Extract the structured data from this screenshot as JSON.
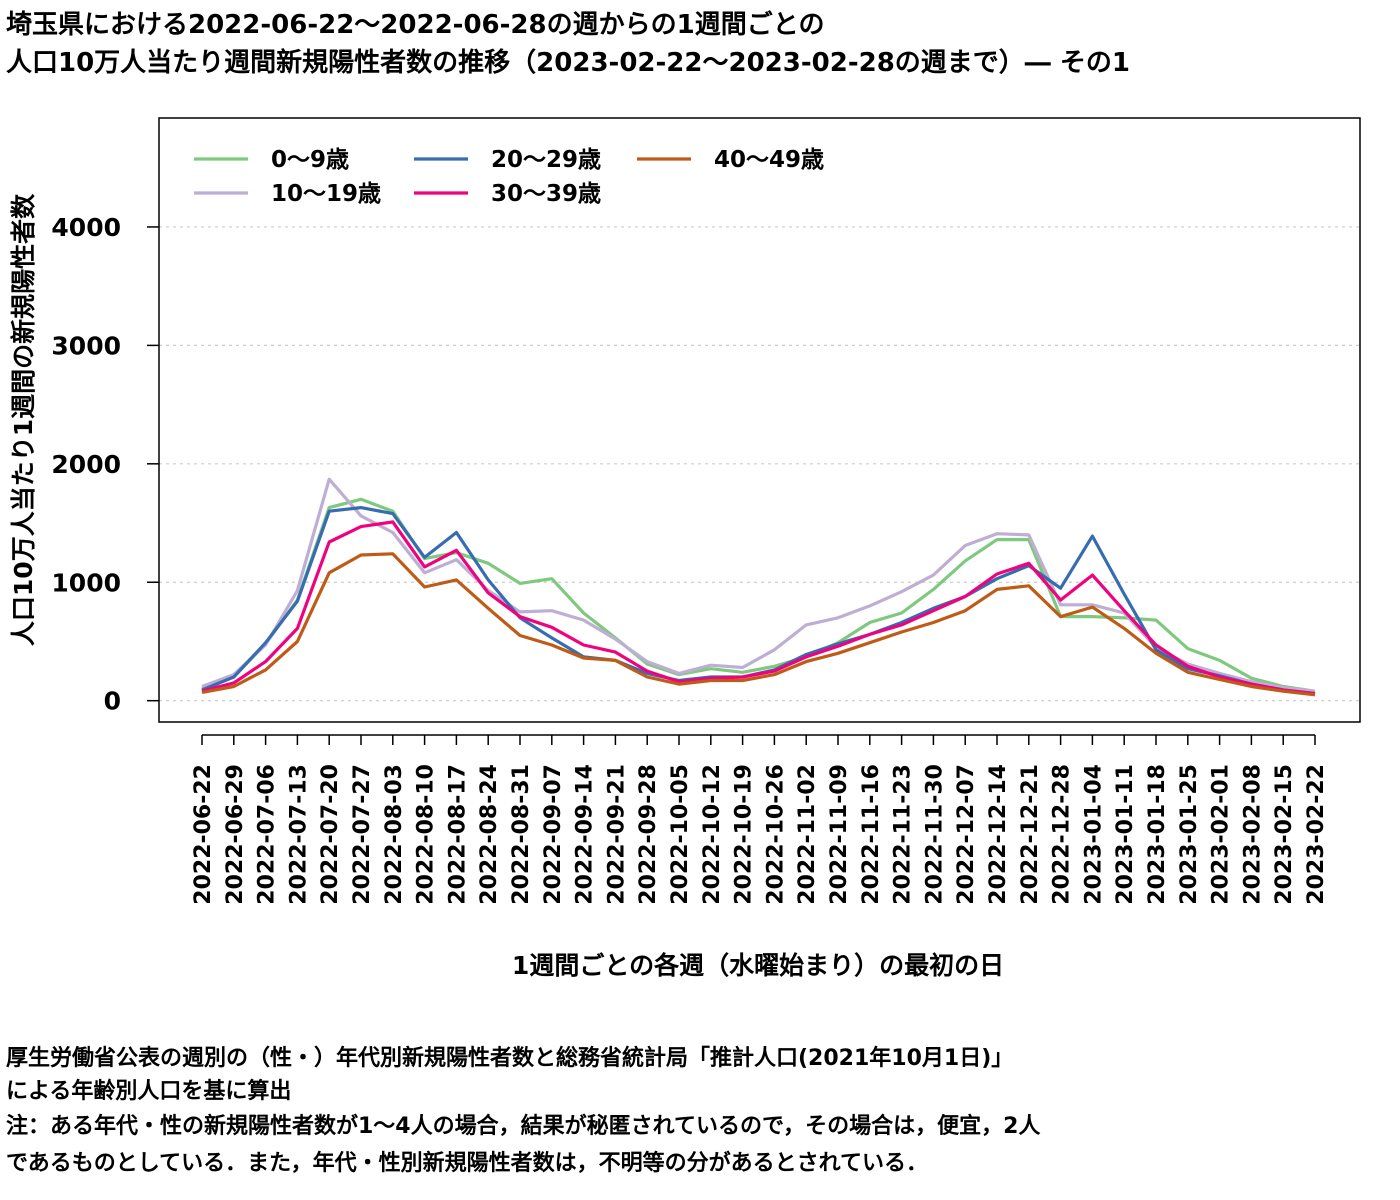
{
  "title_line1": "埼玉県における2022-06-22〜2022-06-28の週からの1週間ごとの",
  "title_line2": "人口10万人当たり週間新規陽性者数の推移（2023-02-22〜2023-02-28の週まで）― その1",
  "notes": [
    "厚生労働省公表の週別の（性・）年代別新規陽性者数と総務省統計局「推計人口(2021年10月1日)」",
    "による年齢別人口を基に算出",
    "注：ある年代・性の新規陽性者数が1〜4人の場合，結果が秘匿されているので，その場合は，便宜，2人",
    "であるものとしている．また，年代・性別新規陽性者数は，不明等の分があるとされている．"
  ],
  "chart_data": {
    "type": "line",
    "xlabel": "1週間ごとの各週（水曜始まり）の最初の日",
    "ylabel": "人口10万人当たり1週間の新規陽性者数",
    "ylim": [
      -180,
      4920
    ],
    "yticks": [
      0,
      1000,
      2000,
      3000,
      4000
    ],
    "grid": true,
    "legend_position": "top-left",
    "categories": [
      "2022-06-22",
      "2022-06-29",
      "2022-07-06",
      "2022-07-13",
      "2022-07-20",
      "2022-07-27",
      "2022-08-03",
      "2022-08-10",
      "2022-08-17",
      "2022-08-24",
      "2022-08-31",
      "2022-09-07",
      "2022-09-14",
      "2022-09-21",
      "2022-09-28",
      "2022-10-05",
      "2022-10-12",
      "2022-10-19",
      "2022-10-26",
      "2022-11-02",
      "2022-11-09",
      "2022-11-16",
      "2022-11-23",
      "2022-11-30",
      "2022-12-07",
      "2022-12-14",
      "2022-12-21",
      "2022-12-28",
      "2023-01-04",
      "2023-01-11",
      "2023-01-18",
      "2023-01-25",
      "2023-02-01",
      "2023-02-08",
      "2023-02-15",
      "2023-02-22"
    ],
    "series": [
      {
        "name": "0〜9歳",
        "color": "#7fc97f",
        "values": [
          100,
          200,
          480,
          850,
          1630,
          1700,
          1600,
          1200,
          1250,
          1160,
          990,
          1030,
          740,
          530,
          310,
          220,
          270,
          240,
          290,
          370,
          490,
          660,
          740,
          940,
          1180,
          1360,
          1360,
          710,
          710,
          700,
          680,
          440,
          340,
          190,
          120,
          80
        ]
      },
      {
        "name": "10〜19歳",
        "color": "#beaed4",
        "values": [
          120,
          220,
          470,
          930,
          1870,
          1560,
          1420,
          1080,
          1190,
          930,
          750,
          760,
          680,
          520,
          330,
          230,
          300,
          280,
          430,
          640,
          700,
          800,
          920,
          1060,
          1310,
          1410,
          1400,
          810,
          810,
          740,
          450,
          310,
          230,
          160,
          110,
          80
        ]
      },
      {
        "name": "20〜29歳",
        "color": "#386cb0",
        "values": [
          90,
          200,
          490,
          840,
          1600,
          1630,
          1580,
          1210,
          1420,
          1020,
          700,
          530,
          370,
          340,
          230,
          170,
          200,
          200,
          260,
          390,
          480,
          560,
          660,
          780,
          880,
          1030,
          1140,
          950,
          1390,
          900,
          430,
          270,
          210,
          140,
          90,
          60
        ]
      },
      {
        "name": "30〜39歳",
        "color": "#f0027f",
        "values": [
          80,
          150,
          330,
          610,
          1340,
          1470,
          1510,
          1130,
          1270,
          910,
          710,
          620,
          470,
          410,
          250,
          160,
          190,
          200,
          250,
          370,
          460,
          560,
          640,
          760,
          880,
          1070,
          1160,
          850,
          1060,
          760,
          470,
          290,
          200,
          140,
          90,
          60
        ]
      },
      {
        "name": "40〜49歳",
        "color": "#bf5b17",
        "values": [
          70,
          120,
          260,
          500,
          1080,
          1230,
          1240,
          960,
          1020,
          780,
          550,
          470,
          360,
          340,
          200,
          140,
          170,
          170,
          220,
          330,
          400,
          490,
          580,
          660,
          760,
          940,
          970,
          710,
          790,
          610,
          400,
          240,
          180,
          120,
          80,
          50
        ]
      }
    ]
  }
}
